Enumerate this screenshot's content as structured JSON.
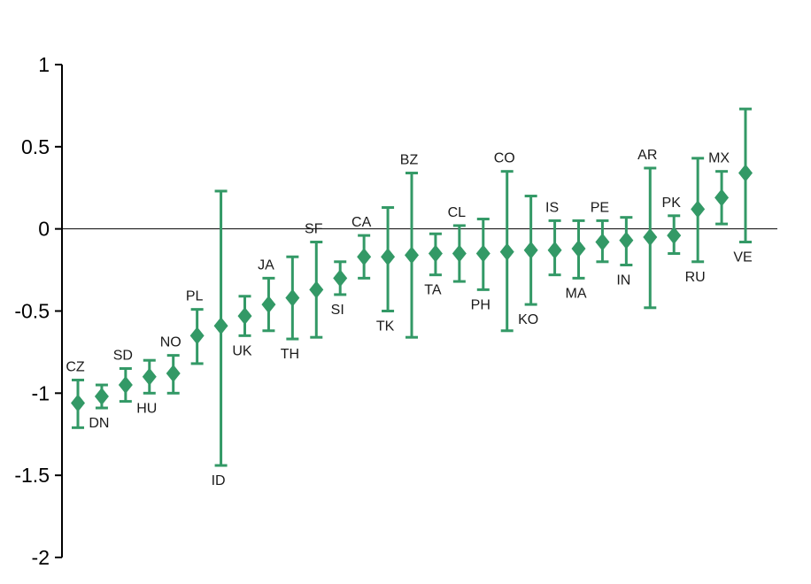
{
  "chart_data": {
    "type": "scatter",
    "subtype": "point-estimates-with-error-bars",
    "title": "",
    "xlabel": "",
    "ylabel": "",
    "ylim": [
      -2,
      1
    ],
    "grid": false,
    "legend": "none",
    "zero_line": true,
    "marker": "diamond",
    "colors": {
      "marker": "#339966",
      "errorbar": "#339966",
      "axis": "#000000",
      "label_text": "#1a1a1a"
    },
    "yticks": [
      {
        "value": 1,
        "label": "1"
      },
      {
        "value": 0.5,
        "label": "0.5"
      },
      {
        "value": 0,
        "label": "0"
      },
      {
        "value": -0.5,
        "label": "-0.5"
      },
      {
        "value": -1,
        "label": "-1"
      },
      {
        "value": -1.5,
        "label": "-1.5"
      },
      {
        "value": -2,
        "label": "-2"
      }
    ],
    "points": [
      {
        "label": "CZ",
        "est": -1.06,
        "lo": -1.21,
        "hi": -0.92,
        "label_pos": "above"
      },
      {
        "label": "DN",
        "est": -1.02,
        "lo": -1.09,
        "hi": -0.95,
        "label_pos": "below"
      },
      {
        "label": "SD",
        "est": -0.95,
        "lo": -1.05,
        "hi": -0.85,
        "label_pos": "above"
      },
      {
        "label": "HU",
        "est": -0.9,
        "lo": -1.0,
        "hi": -0.8,
        "label_pos": "below"
      },
      {
        "label": "NO",
        "est": -0.88,
        "lo": -1.0,
        "hi": -0.77,
        "label_pos": "above"
      },
      {
        "label": "PL",
        "est": -0.65,
        "lo": -0.82,
        "hi": -0.49,
        "label_pos": "above"
      },
      {
        "label": "ID",
        "est": -0.59,
        "lo": -1.44,
        "hi": 0.23,
        "label_pos": "below"
      },
      {
        "label": "UK",
        "est": -0.53,
        "lo": -0.65,
        "hi": -0.41,
        "label_pos": "below"
      },
      {
        "label": "JA",
        "est": -0.46,
        "lo": -0.62,
        "hi": -0.3,
        "label_pos": "above"
      },
      {
        "label": "TH",
        "est": -0.42,
        "lo": -0.67,
        "hi": -0.17,
        "label_pos": "below"
      },
      {
        "label": "SF",
        "est": -0.37,
        "lo": -0.66,
        "hi": -0.08,
        "label_pos": "above"
      },
      {
        "label": "SI",
        "est": -0.3,
        "lo": -0.4,
        "hi": -0.2,
        "label_pos": "below"
      },
      {
        "label": "CA",
        "est": -0.17,
        "lo": -0.3,
        "hi": -0.04,
        "label_pos": "above"
      },
      {
        "label": "TK",
        "est": -0.17,
        "lo": -0.5,
        "hi": 0.13,
        "label_pos": "below"
      },
      {
        "label": "BZ",
        "est": -0.16,
        "lo": -0.66,
        "hi": 0.34,
        "label_pos": "above"
      },
      {
        "label": "TA",
        "est": -0.15,
        "lo": -0.28,
        "hi": -0.03,
        "label_pos": "below"
      },
      {
        "label": "CL",
        "est": -0.15,
        "lo": -0.32,
        "hi": 0.02,
        "label_pos": "above"
      },
      {
        "label": "PH",
        "est": -0.15,
        "lo": -0.37,
        "hi": 0.06,
        "label_pos": "below"
      },
      {
        "label": "CO",
        "est": -0.14,
        "lo": -0.62,
        "hi": 0.35,
        "label_pos": "above"
      },
      {
        "label": "KO",
        "est": -0.13,
        "lo": -0.46,
        "hi": 0.2,
        "label_pos": "below"
      },
      {
        "label": "IS",
        "est": -0.13,
        "lo": -0.28,
        "hi": 0.05,
        "label_pos": "above"
      },
      {
        "label": "MA",
        "est": -0.12,
        "lo": -0.3,
        "hi": 0.05,
        "label_pos": "below"
      },
      {
        "label": "PE",
        "est": -0.08,
        "lo": -0.2,
        "hi": 0.05,
        "label_pos": "above"
      },
      {
        "label": "IN",
        "est": -0.07,
        "lo": -0.22,
        "hi": 0.07,
        "label_pos": "below"
      },
      {
        "label": "AR",
        "est": -0.05,
        "lo": -0.48,
        "hi": 0.37,
        "label_pos": "above"
      },
      {
        "label": "PK",
        "est": -0.04,
        "lo": -0.15,
        "hi": 0.08,
        "label_pos": "above"
      },
      {
        "label": "RU",
        "est": 0.12,
        "lo": -0.2,
        "hi": 0.43,
        "label_pos": "below"
      },
      {
        "label": "MX",
        "est": 0.19,
        "lo": 0.03,
        "hi": 0.35,
        "label_pos": "above"
      },
      {
        "label": "VE",
        "est": 0.34,
        "lo": -0.08,
        "hi": 0.73,
        "label_pos": "below"
      }
    ]
  }
}
